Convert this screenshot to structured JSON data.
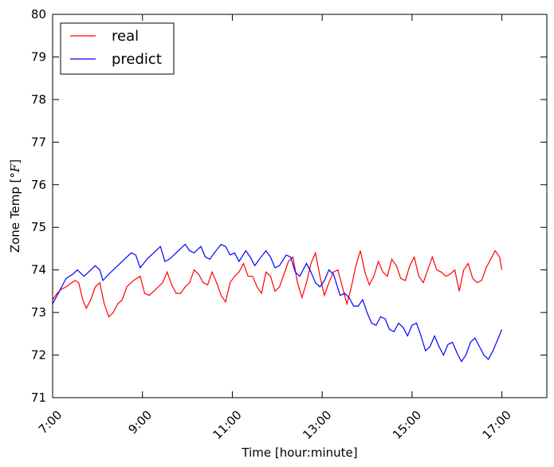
{
  "chart_data": {
    "type": "line",
    "xlabel": "Time [hour:minute]",
    "ylabel_prefix": "Zone Temp [",
    "ylabel_unit": "°F",
    "ylabel_suffix": "]",
    "xlim": [
      7.0,
      18.0
    ],
    "ylim": [
      71,
      80
    ],
    "x_ticks": [
      {
        "value": 7,
        "label": "7:00"
      },
      {
        "value": 9,
        "label": "9:00"
      },
      {
        "value": 11,
        "label": "11:00"
      },
      {
        "value": 13,
        "label": "13:00"
      },
      {
        "value": 15,
        "label": "15:00"
      },
      {
        "value": 17,
        "label": "17:00"
      }
    ],
    "y_ticks": [
      71,
      72,
      73,
      74,
      75,
      76,
      77,
      78,
      79,
      80
    ],
    "grid": false,
    "legend_position": "top-left",
    "series": [
      {
        "name": "real",
        "color": "#ff0000",
        "points": [
          [
            7.0,
            73.3
          ],
          [
            7.1,
            73.45
          ],
          [
            7.2,
            73.55
          ],
          [
            7.3,
            73.6
          ],
          [
            7.4,
            73.68
          ],
          [
            7.5,
            73.75
          ],
          [
            7.58,
            73.7
          ],
          [
            7.67,
            73.3
          ],
          [
            7.75,
            73.1
          ],
          [
            7.85,
            73.3
          ],
          [
            7.95,
            73.6
          ],
          [
            8.05,
            73.7
          ],
          [
            8.15,
            73.2
          ],
          [
            8.25,
            72.9
          ],
          [
            8.35,
            73.0
          ],
          [
            8.45,
            73.2
          ],
          [
            8.55,
            73.3
          ],
          [
            8.65,
            73.6
          ],
          [
            8.8,
            73.75
          ],
          [
            8.95,
            73.85
          ],
          [
            9.05,
            73.45
          ],
          [
            9.15,
            73.4
          ],
          [
            9.25,
            73.5
          ],
          [
            9.35,
            73.6
          ],
          [
            9.45,
            73.7
          ],
          [
            9.55,
            73.95
          ],
          [
            9.65,
            73.65
          ],
          [
            9.75,
            73.45
          ],
          [
            9.85,
            73.45
          ],
          [
            9.95,
            73.6
          ],
          [
            10.05,
            73.7
          ],
          [
            10.15,
            74.0
          ],
          [
            10.25,
            73.9
          ],
          [
            10.35,
            73.7
          ],
          [
            10.45,
            73.65
          ],
          [
            10.55,
            73.95
          ],
          [
            10.65,
            73.7
          ],
          [
            10.75,
            73.4
          ],
          [
            10.85,
            73.25
          ],
          [
            10.95,
            73.7
          ],
          [
            11.05,
            73.85
          ],
          [
            11.15,
            73.95
          ],
          [
            11.25,
            74.15
          ],
          [
            11.35,
            73.85
          ],
          [
            11.45,
            73.85
          ],
          [
            11.55,
            73.6
          ],
          [
            11.65,
            73.45
          ],
          [
            11.75,
            73.95
          ],
          [
            11.85,
            73.85
          ],
          [
            11.95,
            73.5
          ],
          [
            12.05,
            73.6
          ],
          [
            12.15,
            73.9
          ],
          [
            12.25,
            74.2
          ],
          [
            12.35,
            74.3
          ],
          [
            12.45,
            73.7
          ],
          [
            12.55,
            73.35
          ],
          [
            12.65,
            73.7
          ],
          [
            12.75,
            74.15
          ],
          [
            12.85,
            74.4
          ],
          [
            12.95,
            73.85
          ],
          [
            13.05,
            73.4
          ],
          [
            13.15,
            73.7
          ],
          [
            13.25,
            73.95
          ],
          [
            13.35,
            74.0
          ],
          [
            13.45,
            73.6
          ],
          [
            13.55,
            73.2
          ],
          [
            13.65,
            73.6
          ],
          [
            13.75,
            74.1
          ],
          [
            13.85,
            74.45
          ],
          [
            13.95,
            73.95
          ],
          [
            14.05,
            73.65
          ],
          [
            14.15,
            73.85
          ],
          [
            14.25,
            74.2
          ],
          [
            14.35,
            73.95
          ],
          [
            14.45,
            73.85
          ],
          [
            14.55,
            74.25
          ],
          [
            14.65,
            74.1
          ],
          [
            14.75,
            73.8
          ],
          [
            14.85,
            73.75
          ],
          [
            14.95,
            74.1
          ],
          [
            15.05,
            74.3
          ],
          [
            15.15,
            73.85
          ],
          [
            15.25,
            73.7
          ],
          [
            15.35,
            74.0
          ],
          [
            15.45,
            74.3
          ],
          [
            15.55,
            74.0
          ],
          [
            15.65,
            73.95
          ],
          [
            15.75,
            73.85
          ],
          [
            15.85,
            73.9
          ],
          [
            15.95,
            74.0
          ],
          [
            16.05,
            73.5
          ],
          [
            16.15,
            74.0
          ],
          [
            16.25,
            74.15
          ],
          [
            16.35,
            73.8
          ],
          [
            16.45,
            73.7
          ],
          [
            16.55,
            73.75
          ],
          [
            16.65,
            74.05
          ],
          [
            16.75,
            74.25
          ],
          [
            16.85,
            74.45
          ],
          [
            16.95,
            74.3
          ],
          [
            17.0,
            74.0
          ]
        ]
      },
      {
        "name": "predict",
        "color": "#0000ff",
        "points": [
          [
            7.0,
            73.2
          ],
          [
            7.15,
            73.5
          ],
          [
            7.3,
            73.8
          ],
          [
            7.45,
            73.9
          ],
          [
            7.55,
            74.0
          ],
          [
            7.7,
            73.85
          ],
          [
            7.85,
            74.0
          ],
          [
            7.95,
            74.1
          ],
          [
            8.05,
            74.0
          ],
          [
            8.12,
            73.75
          ],
          [
            8.25,
            73.9
          ],
          [
            8.45,
            74.1
          ],
          [
            8.65,
            74.3
          ],
          [
            8.75,
            74.4
          ],
          [
            8.85,
            74.35
          ],
          [
            8.95,
            74.05
          ],
          [
            9.1,
            74.25
          ],
          [
            9.3,
            74.45
          ],
          [
            9.4,
            74.55
          ],
          [
            9.5,
            74.2
          ],
          [
            9.6,
            74.25
          ],
          [
            9.8,
            74.45
          ],
          [
            9.95,
            74.6
          ],
          [
            10.05,
            74.45
          ],
          [
            10.15,
            74.4
          ],
          [
            10.3,
            74.55
          ],
          [
            10.4,
            74.3
          ],
          [
            10.5,
            74.25
          ],
          [
            10.6,
            74.4
          ],
          [
            10.75,
            74.6
          ],
          [
            10.85,
            74.55
          ],
          [
            10.95,
            74.35
          ],
          [
            11.05,
            74.4
          ],
          [
            11.15,
            74.2
          ],
          [
            11.3,
            74.45
          ],
          [
            11.4,
            74.3
          ],
          [
            11.5,
            74.1
          ],
          [
            11.6,
            74.25
          ],
          [
            11.75,
            74.45
          ],
          [
            11.85,
            74.3
          ],
          [
            11.95,
            74.05
          ],
          [
            12.05,
            74.1
          ],
          [
            12.2,
            74.35
          ],
          [
            12.3,
            74.3
          ],
          [
            12.4,
            73.95
          ],
          [
            12.5,
            73.85
          ],
          [
            12.65,
            74.15
          ],
          [
            12.75,
            73.95
          ],
          [
            12.85,
            73.7
          ],
          [
            12.95,
            73.6
          ],
          [
            13.05,
            73.75
          ],
          [
            13.15,
            74.0
          ],
          [
            13.25,
            73.9
          ],
          [
            13.4,
            73.4
          ],
          [
            13.5,
            73.45
          ],
          [
            13.6,
            73.35
          ],
          [
            13.7,
            73.15
          ],
          [
            13.8,
            73.15
          ],
          [
            13.9,
            73.3
          ],
          [
            14.0,
            73.0
          ],
          [
            14.1,
            72.75
          ],
          [
            14.2,
            72.7
          ],
          [
            14.3,
            72.9
          ],
          [
            14.4,
            72.85
          ],
          [
            14.5,
            72.6
          ],
          [
            14.6,
            72.55
          ],
          [
            14.7,
            72.75
          ],
          [
            14.8,
            72.65
          ],
          [
            14.9,
            72.45
          ],
          [
            15.0,
            72.7
          ],
          [
            15.1,
            72.75
          ],
          [
            15.2,
            72.45
          ],
          [
            15.3,
            72.1
          ],
          [
            15.4,
            72.2
          ],
          [
            15.5,
            72.45
          ],
          [
            15.6,
            72.2
          ],
          [
            15.7,
            72.0
          ],
          [
            15.8,
            72.25
          ],
          [
            15.9,
            72.3
          ],
          [
            16.0,
            72.05
          ],
          [
            16.1,
            71.85
          ],
          [
            16.2,
            72.0
          ],
          [
            16.3,
            72.3
          ],
          [
            16.4,
            72.4
          ],
          [
            16.5,
            72.2
          ],
          [
            16.6,
            72.0
          ],
          [
            16.7,
            71.9
          ],
          [
            16.8,
            72.1
          ],
          [
            16.9,
            72.35
          ],
          [
            17.0,
            72.6
          ]
        ]
      }
    ]
  }
}
